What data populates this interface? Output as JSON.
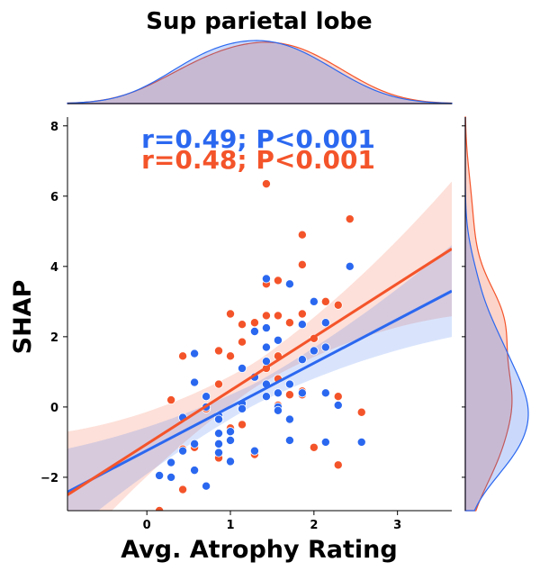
{
  "chart_data": {
    "type": "scatter",
    "title": "Sup parietal lobe",
    "xlabel": "Avg. Atrophy Rating",
    "ylabel": "SHAP",
    "xlim": [
      -0.95,
      3.65
    ],
    "ylim": [
      -2.95,
      8.25
    ],
    "xticks": [
      0,
      1,
      2,
      3
    ],
    "yticks": [
      -2,
      0,
      2,
      4,
      6,
      8
    ],
    "grid": false,
    "marginals": "kde",
    "annotations": [
      {
        "text": "r=0.49; P<0.001",
        "color": "#2b68f0"
      },
      {
        "text": "r=0.48; P<0.001",
        "color": "#f4542a"
      }
    ],
    "series": [
      {
        "color": "#2b68f0",
        "regression": {
          "x": [
            -0.95,
            3.65
          ],
          "y": [
            -2.42,
            3.3
          ]
        },
        "points": [
          [
            0.15,
            -1.95
          ],
          [
            0.29,
            -1.58
          ],
          [
            0.29,
            -2.0
          ],
          [
            0.43,
            -0.3
          ],
          [
            0.43,
            -1.25
          ],
          [
            0.57,
            1.52
          ],
          [
            0.57,
            0.7
          ],
          [
            0.57,
            -1.05
          ],
          [
            0.57,
            -1.8
          ],
          [
            0.71,
            0.3
          ],
          [
            0.71,
            0.0
          ],
          [
            0.71,
            -2.25
          ],
          [
            0.86,
            -0.25
          ],
          [
            0.86,
            -0.35
          ],
          [
            0.86,
            -0.75
          ],
          [
            0.86,
            -1.05
          ],
          [
            0.86,
            -1.3
          ],
          [
            1.0,
            -0.95
          ],
          [
            1.0,
            -1.55
          ],
          [
            1.0,
            -0.7
          ],
          [
            1.14,
            1.1
          ],
          [
            1.14,
            0.1
          ],
          [
            1.14,
            -0.05
          ],
          [
            1.29,
            2.15
          ],
          [
            1.29,
            0.85
          ],
          [
            1.29,
            -1.25
          ],
          [
            1.43,
            3.65
          ],
          [
            1.43,
            2.25
          ],
          [
            1.43,
            1.7
          ],
          [
            1.43,
            1.3
          ],
          [
            1.43,
            0.65
          ],
          [
            1.43,
            0.3
          ],
          [
            1.57,
            1.9
          ],
          [
            1.57,
            0.4
          ],
          [
            1.57,
            0.0
          ],
          [
            1.57,
            -0.1
          ],
          [
            1.71,
            3.5
          ],
          [
            1.71,
            0.65
          ],
          [
            1.71,
            -0.35
          ],
          [
            1.71,
            -0.95
          ],
          [
            1.86,
            2.35
          ],
          [
            1.86,
            1.35
          ],
          [
            1.86,
            0.4
          ],
          [
            2.0,
            3.0
          ],
          [
            2.0,
            1.6
          ],
          [
            2.14,
            2.4
          ],
          [
            2.14,
            1.7
          ],
          [
            2.14,
            0.4
          ],
          [
            2.14,
            -1.0
          ],
          [
            2.29,
            0.05
          ],
          [
            2.43,
            4.0
          ],
          [
            2.57,
            -1.0
          ]
        ]
      },
      {
        "color": "#f4542a",
        "regression": {
          "x": [
            -0.95,
            3.65
          ],
          "y": [
            -2.5,
            4.5
          ]
        },
        "points": [
          [
            0.15,
            -2.95
          ],
          [
            0.29,
            0.2
          ],
          [
            0.29,
            -2.0
          ],
          [
            0.43,
            1.45
          ],
          [
            0.43,
            -1.2
          ],
          [
            0.43,
            -2.35
          ],
          [
            0.57,
            -1.15
          ],
          [
            0.57,
            -1.8
          ],
          [
            0.71,
            -0.05
          ],
          [
            0.86,
            1.6
          ],
          [
            0.86,
            0.65
          ],
          [
            0.86,
            -0.3
          ],
          [
            0.86,
            -1.45
          ],
          [
            1.0,
            2.65
          ],
          [
            1.0,
            1.45
          ],
          [
            1.0,
            -0.6
          ],
          [
            1.0,
            -0.7
          ],
          [
            1.14,
            2.35
          ],
          [
            1.14,
            1.85
          ],
          [
            1.14,
            -0.5
          ],
          [
            1.29,
            2.4
          ],
          [
            1.29,
            -1.35
          ],
          [
            1.43,
            6.35
          ],
          [
            1.43,
            3.5
          ],
          [
            1.43,
            2.6
          ],
          [
            1.43,
            1.1
          ],
          [
            1.57,
            3.6
          ],
          [
            1.57,
            2.6
          ],
          [
            1.57,
            1.45
          ],
          [
            1.57,
            0.8
          ],
          [
            1.57,
            0.05
          ],
          [
            1.71,
            2.4
          ],
          [
            1.71,
            0.35
          ],
          [
            1.86,
            4.9
          ],
          [
            1.86,
            4.05
          ],
          [
            1.86,
            2.65
          ],
          [
            1.86,
            0.45
          ],
          [
            1.86,
            0.35
          ],
          [
            2.0,
            1.95
          ],
          [
            2.0,
            -1.15
          ],
          [
            2.14,
            3.0
          ],
          [
            2.14,
            0.4
          ],
          [
            2.29,
            2.9
          ],
          [
            2.29,
            0.3
          ],
          [
            2.29,
            -1.65
          ],
          [
            2.43,
            5.35
          ],
          [
            2.57,
            -0.15
          ]
        ]
      }
    ]
  }
}
